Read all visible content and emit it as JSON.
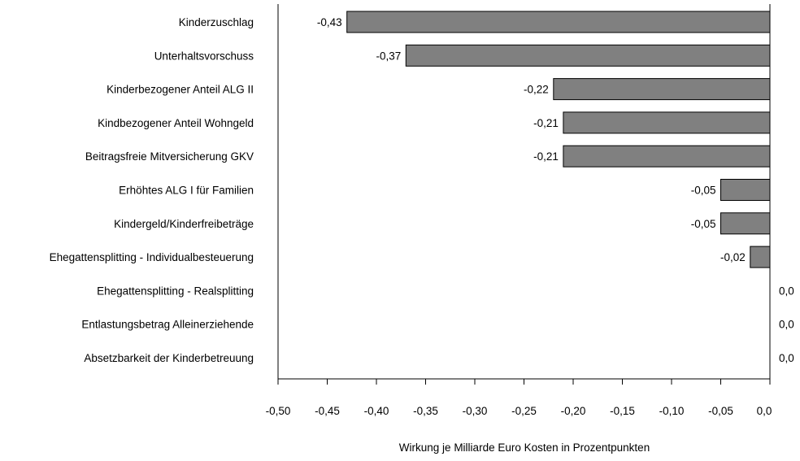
{
  "chart_data": {
    "type": "bar",
    "orientation": "horizontal",
    "categories": [
      "Kinderzuschlag",
      "Unterhaltsvorschuss",
      "Kinderbezogener Anteil ALG II",
      "Kindbezogener Anteil Wohngeld",
      "Beitragsfreie Mitversicherung GKV",
      "Erhöhtes ALG I für Familien",
      "Kindergeld/Kinderfreibeträge",
      "Ehegattensplitting - Individualbesteuerung",
      "Ehegattensplitting - Realsplitting",
      "Entlastungsbetrag Alleinerziehende",
      "Absetzbarkeit der Kinderbetreuung"
    ],
    "values": [
      -0.43,
      -0.37,
      -0.22,
      -0.21,
      -0.21,
      -0.05,
      -0.05,
      -0.02,
      0.0,
      0.0,
      0.0
    ],
    "value_labels": [
      "-0,43",
      "-0,37",
      "-0,22",
      "-0,21",
      "-0,21",
      "-0,05",
      "-0,05",
      "-0,02",
      "0,0",
      "0,0",
      "0,0"
    ],
    "xlim": [
      -0.5,
      0.0
    ],
    "xticks": [
      -0.5,
      -0.45,
      -0.4,
      -0.35,
      -0.3,
      -0.25,
      -0.2,
      -0.15,
      -0.1,
      -0.05,
      0.0
    ],
    "xtick_labels": [
      "-0,50",
      "-0,45",
      "-0,40",
      "-0,35",
      "-0,30",
      "-0,25",
      "-0,20",
      "-0,15",
      "-0,10",
      "-0,05",
      "0,0"
    ],
    "xlabel": "Wirkung je Milliarde Euro Kosten in Prozentpunkten",
    "ylabel": "",
    "title": "",
    "grid": false,
    "bar_color": "#808080",
    "bar_edge_color": "#000000"
  }
}
